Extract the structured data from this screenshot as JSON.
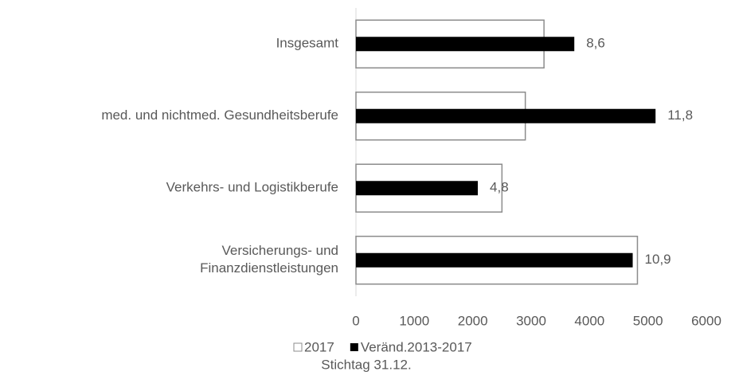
{
  "chart_data": {
    "type": "hbar",
    "subtitle": "Stichtag 31.12.",
    "categories": [
      "Insgesamt",
      "med. und nichtmed. Gesundheitsberufe",
      "Verkehrs- und Logistikberufe",
      "Versicherungs- und\nFinanzdienstleistungen"
    ],
    "series": [
      {
        "name": "2017",
        "color": "#ffffff",
        "stroke": "#8c8c8c",
        "values": [
          3220,
          2900,
          2500,
          4820
        ]
      },
      {
        "name": "Veränd.2013-2017",
        "color": "#000000",
        "axis": "y2",
        "values": [
          8.6,
          11.8,
          4.8,
          10.9
        ],
        "value_labels": [
          "8,6",
          "11,8",
          "4,8",
          "10,9"
        ]
      }
    ],
    "ylim": [
      0,
      6000
    ],
    "yticks": [
      0,
      1000,
      2000,
      3000,
      4000,
      5000,
      6000
    ],
    "y2lim": [
      0,
      13.8
    ],
    "grid": false,
    "legend": "bottom"
  }
}
